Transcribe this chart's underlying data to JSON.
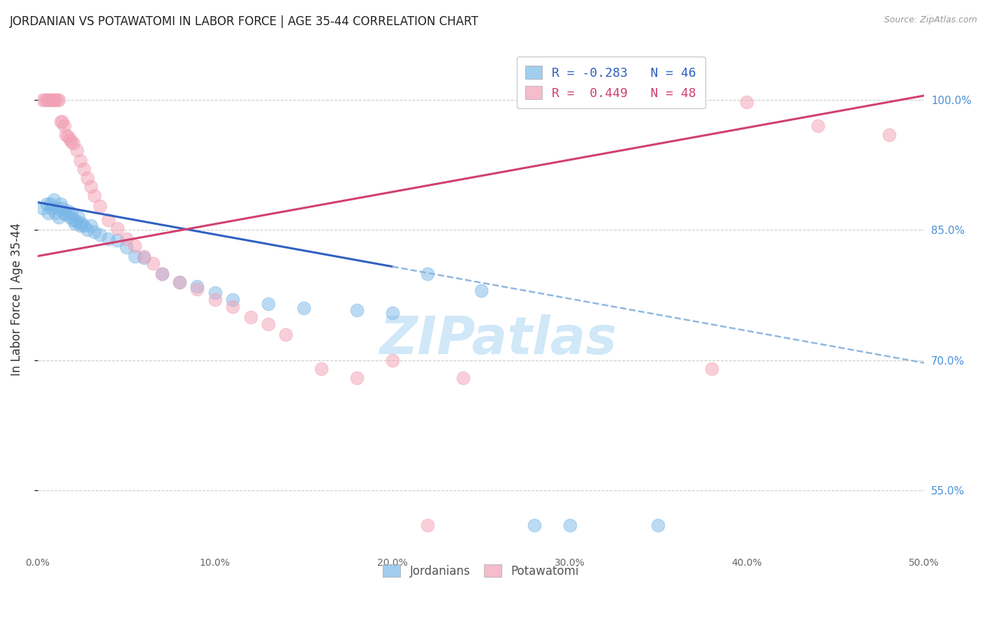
{
  "title": "JORDANIAN VS POTAWATOMI IN LABOR FORCE | AGE 35-44 CORRELATION CHART",
  "source": "Source: ZipAtlas.com",
  "ylabel": "In Labor Force | Age 35-44",
  "xlim": [
    0.0,
    0.5
  ],
  "ylim": [
    0.48,
    1.06
  ],
  "xticks": [
    0.0,
    0.1,
    0.2,
    0.3,
    0.4,
    0.5
  ],
  "xtick_labels": [
    "0.0%",
    "10.0%",
    "20.0%",
    "30.0%",
    "40.0%",
    "50.0%"
  ],
  "right_yticks": [
    0.55,
    0.7,
    0.85,
    1.0
  ],
  "right_ytick_labels": [
    "55.0%",
    "70.0%",
    "85.0%",
    "100.0%"
  ],
  "grid_yticks": [
    0.55,
    0.7,
    0.85,
    1.0
  ],
  "legend_blue_r": "-0.283",
  "legend_blue_n": "46",
  "legend_pink_r": "0.449",
  "legend_pink_n": "48",
  "blue_color": "#7ab8e8",
  "pink_color": "#f2a0b5",
  "trend_blue_solid_color": "#3060c0",
  "trend_pink_solid_color": "#d04070",
  "trend_blue_dash_color": "#90b8e0",
  "watermark": "ZIPatlas",
  "watermark_color": "#d0e8f8",
  "blue_points_x": [
    0.003,
    0.005,
    0.006,
    0.007,
    0.008,
    0.009,
    0.01,
    0.011,
    0.012,
    0.013,
    0.014,
    0.015,
    0.016,
    0.017,
    0.018,
    0.019,
    0.02,
    0.021,
    0.022,
    0.023,
    0.024,
    0.025,
    0.026,
    0.028,
    0.03,
    0.032,
    0.035,
    0.04,
    0.045,
    0.05,
    0.055,
    0.06,
    0.07,
    0.08,
    0.09,
    0.1,
    0.11,
    0.13,
    0.15,
    0.18,
    0.2,
    0.22,
    0.25,
    0.28,
    0.3,
    0.35
  ],
  "blue_points_y": [
    0.875,
    0.88,
    0.87,
    0.88,
    0.875,
    0.885,
    0.87,
    0.875,
    0.865,
    0.88,
    0.875,
    0.87,
    0.868,
    0.872,
    0.865,
    0.87,
    0.862,
    0.858,
    0.86,
    0.865,
    0.855,
    0.858,
    0.855,
    0.85,
    0.855,
    0.848,
    0.845,
    0.84,
    0.838,
    0.83,
    0.82,
    0.818,
    0.8,
    0.79,
    0.785,
    0.778,
    0.77,
    0.765,
    0.76,
    0.758,
    0.755,
    0.8,
    0.78,
    0.51,
    0.51,
    0.51
  ],
  "pink_points_x": [
    0.003,
    0.004,
    0.005,
    0.006,
    0.007,
    0.008,
    0.009,
    0.01,
    0.011,
    0.012,
    0.013,
    0.014,
    0.015,
    0.016,
    0.017,
    0.018,
    0.019,
    0.02,
    0.022,
    0.024,
    0.026,
    0.028,
    0.03,
    0.032,
    0.035,
    0.04,
    0.045,
    0.05,
    0.055,
    0.06,
    0.065,
    0.07,
    0.08,
    0.09,
    0.1,
    0.11,
    0.12,
    0.13,
    0.14,
    0.16,
    0.18,
    0.2,
    0.22,
    0.24,
    0.38,
    0.4,
    0.44,
    0.48
  ],
  "pink_points_y": [
    1.0,
    1.0,
    1.0,
    1.0,
    1.0,
    1.0,
    1.0,
    1.0,
    1.0,
    1.0,
    0.975,
    0.975,
    0.97,
    0.96,
    0.958,
    0.955,
    0.952,
    0.95,
    0.942,
    0.93,
    0.92,
    0.91,
    0.9,
    0.89,
    0.878,
    0.862,
    0.852,
    0.84,
    0.832,
    0.82,
    0.812,
    0.8,
    0.79,
    0.782,
    0.77,
    0.762,
    0.75,
    0.742,
    0.73,
    0.69,
    0.68,
    0.7,
    0.51,
    0.68,
    0.69,
    0.998,
    0.97,
    0.96
  ],
  "blue_trend_solid_x0": 0.0,
  "blue_trend_solid_x1": 0.2,
  "blue_trend_solid_y0": 0.882,
  "blue_trend_solid_y1": 0.808,
  "blue_trend_dash_x0": 0.2,
  "blue_trend_dash_x1": 0.5,
  "blue_trend_dash_y0": 0.808,
  "blue_trend_dash_y1": 0.697,
  "pink_trend_x0": 0.0,
  "pink_trend_x1": 0.5,
  "pink_trend_y0": 0.82,
  "pink_trend_y1": 1.005
}
